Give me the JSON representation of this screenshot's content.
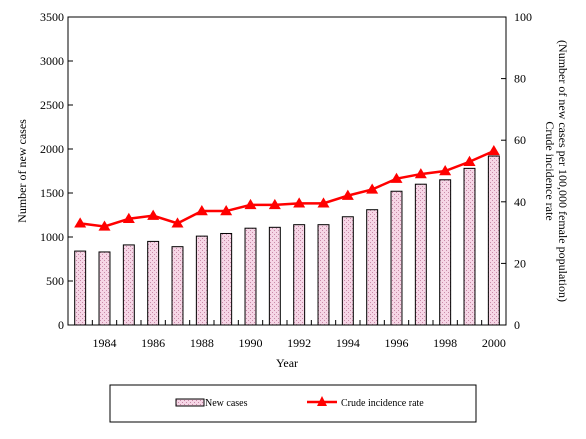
{
  "chart_data": {
    "type": "bar",
    "x": [
      1983,
      1984,
      1985,
      1986,
      1987,
      1988,
      1989,
      1990,
      1991,
      1992,
      1993,
      1994,
      1995,
      1996,
      1997,
      1998,
      1999,
      2000
    ],
    "x_tick_labels": [
      "1984",
      "1986",
      "1988",
      "1990",
      "1992",
      "1994",
      "1996",
      "1998",
      "2000"
    ],
    "xlabel": "Year",
    "ylabel": "Number of new cases",
    "ylim": [
      0,
      3500
    ],
    "y_ticks": [
      0,
      500,
      1000,
      1500,
      2000,
      2500,
      3000,
      3500
    ],
    "y2label_line1": "Crude incidence  rate",
    "y2label_line2": "(Number of new cases  per 100,000 female  population)",
    "y2lim": [
      0,
      100
    ],
    "y2_ticks": [
      0,
      20,
      40,
      60,
      80,
      100
    ],
    "grid": false,
    "legend_position": "bottom",
    "series": [
      {
        "name": "New cases",
        "type": "bar",
        "axis": "left",
        "values": [
          840,
          830,
          910,
          950,
          890,
          1010,
          1040,
          1100,
          1110,
          1140,
          1140,
          1230,
          1310,
          1520,
          1600,
          1650,
          1780,
          1920
        ]
      },
      {
        "name": "Crude incidence rate",
        "type": "line",
        "axis": "right",
        "color": "#ff0000",
        "values": [
          33,
          32,
          34.5,
          35.5,
          33,
          37,
          37,
          39,
          39,
          39.5,
          39.5,
          42,
          44,
          47.5,
          49,
          50,
          53,
          56.5
        ]
      }
    ]
  }
}
